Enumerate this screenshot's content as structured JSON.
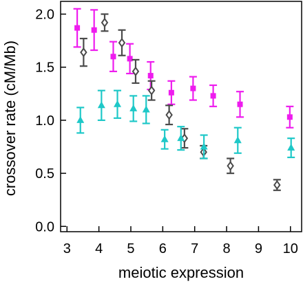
{
  "chart_data": {
    "type": "scatter",
    "title": "",
    "xlabel": "meiotic expression",
    "ylabel": "crossover rate (cM/Mb)",
    "xlim": [
      2.8,
      10.35
    ],
    "ylim": [
      -0.05,
      2.12
    ],
    "xticks": [
      3,
      4,
      5,
      6,
      7,
      8,
      9,
      10
    ],
    "yticks": [
      0.0,
      0.5,
      1.0,
      1.5,
      2.0
    ],
    "xtick_labels": [
      "3",
      "4",
      "5",
      "6",
      "7",
      "8",
      "9",
      "10"
    ],
    "ytick_labels": [
      "0.0",
      "0.5",
      "1.0",
      "1.5",
      "2.0"
    ],
    "grid": false,
    "error_bars": true,
    "series": [
      {
        "marker": "square",
        "color": "#ee1cee",
        "points": [
          {
            "x": 3.32,
            "y": 1.87,
            "err": 0.18
          },
          {
            "x": 3.85,
            "y": 1.85,
            "err": 0.19
          },
          {
            "x": 4.45,
            "y": 1.6,
            "err": 0.14
          },
          {
            "x": 4.97,
            "y": 1.58,
            "err": 0.14
          },
          {
            "x": 5.62,
            "y": 1.42,
            "err": 0.13
          },
          {
            "x": 6.27,
            "y": 1.26,
            "err": 0.11
          },
          {
            "x": 6.95,
            "y": 1.3,
            "err": 0.11
          },
          {
            "x": 7.58,
            "y": 1.23,
            "err": 0.1
          },
          {
            "x": 8.42,
            "y": 1.15,
            "err": 0.12
          },
          {
            "x": 9.98,
            "y": 1.03,
            "err": 0.1
          }
        ]
      },
      {
        "marker": "diamond",
        "color": "#4a4a4a",
        "points": [
          {
            "x": 3.52,
            "y": 1.64,
            "err": 0.13
          },
          {
            "x": 4.18,
            "y": 1.92,
            "err": 0.08
          },
          {
            "x": 4.72,
            "y": 1.73,
            "err": 0.12
          },
          {
            "x": 5.15,
            "y": 1.46,
            "err": 0.11
          },
          {
            "x": 5.65,
            "y": 1.28,
            "err": 0.09
          },
          {
            "x": 6.2,
            "y": 1.05,
            "err": 0.09
          },
          {
            "x": 6.68,
            "y": 0.83,
            "err": 0.09
          },
          {
            "x": 7.28,
            "y": 0.7,
            "err": 0.06
          },
          {
            "x": 8.12,
            "y": 0.57,
            "err": 0.07
          },
          {
            "x": 9.58,
            "y": 0.39,
            "err": 0.05
          }
        ]
      },
      {
        "marker": "triangle",
        "color": "#1ec8c8",
        "points": [
          {
            "x": 3.42,
            "y": 1.0,
            "err": 0.12
          },
          {
            "x": 4.08,
            "y": 1.14,
            "err": 0.14
          },
          {
            "x": 4.58,
            "y": 1.15,
            "err": 0.13
          },
          {
            "x": 5.08,
            "y": 1.11,
            "err": 0.12
          },
          {
            "x": 5.48,
            "y": 1.1,
            "err": 0.13
          },
          {
            "x": 6.06,
            "y": 0.82,
            "err": 0.09
          },
          {
            "x": 6.57,
            "y": 0.83,
            "err": 0.11
          },
          {
            "x": 7.29,
            "y": 0.75,
            "err": 0.11
          },
          {
            "x": 8.35,
            "y": 0.81,
            "err": 0.12
          },
          {
            "x": 10.02,
            "y": 0.74,
            "err": 0.09
          }
        ]
      }
    ]
  }
}
